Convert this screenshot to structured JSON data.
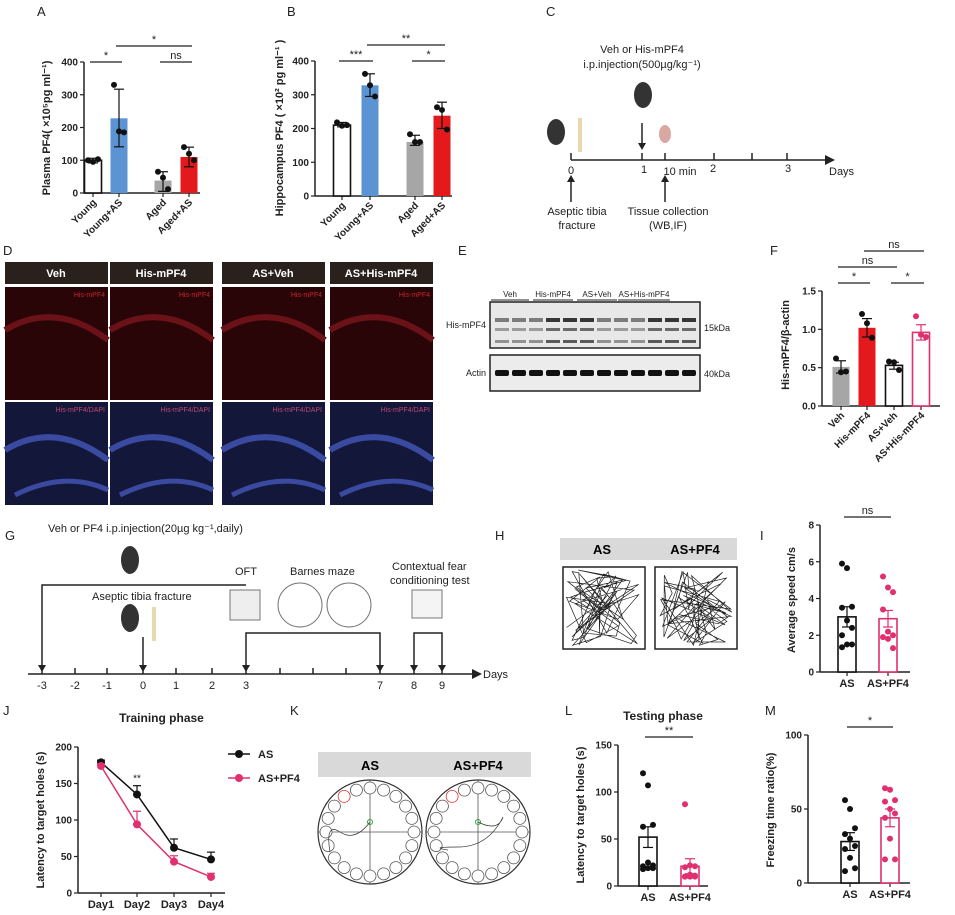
{
  "panel_letters": [
    "A",
    "B",
    "C",
    "D",
    "E",
    "F",
    "G",
    "H",
    "I",
    "J",
    "K",
    "L",
    "M"
  ],
  "colors": {
    "blue": "#5b93d3",
    "red": "#e3191c",
    "grey": "#a6a6a6",
    "pink": "#e0306f",
    "black": "#111111",
    "white": "#ffffff"
  },
  "panel_c": {
    "injection_label_1": "Veh or His-mPF4",
    "injection_label_2": "i.p.injection(500µg/kg⁻¹)",
    "ticks": [
      "0",
      "1",
      "10 min",
      "2",
      "3"
    ],
    "axis_label": "Days",
    "fracture_label_1": "Aseptic tibia",
    "fracture_label_2": "fracture",
    "collection_label_1": "Tissue collection",
    "collection_label_2": "(WB,IF)"
  },
  "panel_d": {
    "columns": [
      "Veh",
      "His-mPF4",
      "AS+Veh",
      "AS+His-mPF4"
    ],
    "top_stain": "His-mPF4",
    "bottom_stain": "His-mPF4/DAPI"
  },
  "panel_e": {
    "groups": [
      "Veh",
      "His-mPF4",
      "AS+Veh",
      "AS+His-mPF4"
    ],
    "rows": [
      "His-mPF4",
      "Actin"
    ],
    "markers": [
      "15kDa",
      "40kDa"
    ]
  },
  "panel_g": {
    "injection_label": "Veh or PF4 i.p.injection(20µg kg⁻¹,daily)",
    "fracture_label": "Aseptic tibia fracture",
    "ofT_label": "OFT",
    "barnes_label": "Barnes maze",
    "fear_label_1": "Contextual fear",
    "fear_label_2": "conditioning test",
    "ticks": [
      "-3",
      "-2",
      "-1",
      "0",
      "1",
      "2",
      "3",
      "7",
      "8",
      "9"
    ],
    "axis_label": "Days"
  },
  "panel_h": {
    "groups": [
      "AS",
      "AS+PF4"
    ]
  },
  "panel_k": {
    "groups": [
      "AS",
      "AS+PF4"
    ]
  },
  "chart_data": [
    {
      "id": "A",
      "type": "bar",
      "ylabel": "Plasma PF4( ×10⁵pg ml⁻¹)",
      "ylim": [
        0,
        400
      ],
      "yticks": [
        "0",
        "100",
        "200",
        "300",
        "400"
      ],
      "categories": [
        "Young",
        "Young+AS",
        "Aged",
        "Aged+AS"
      ],
      "values": [
        100,
        228,
        38,
        110
      ],
      "err_low": [
        92,
        141,
        5,
        80
      ],
      "err_high": [
        106,
        317,
        65,
        140
      ],
      "points": [
        [
          100,
          95,
          103
        ],
        [
          330,
          188,
          185
        ],
        [
          65,
          47,
          12
        ],
        [
          140,
          120,
          100
        ]
      ],
      "colors": [
        "#ffffff",
        "#5b93d3",
        "#a6a6a6",
        "#e3191c"
      ],
      "brackets": [
        {
          "from": 0,
          "to": 1,
          "label": "*",
          "level": 0
        },
        {
          "from": 2,
          "to": 3,
          "label": "ns",
          "level": 0
        },
        {
          "from": 1,
          "to": 3,
          "label": "*",
          "level": 1
        }
      ]
    },
    {
      "id": "B",
      "type": "bar",
      "ylabel": "Hippocampus PF4 ( ×10² pg ml⁻¹ )",
      "ylim": [
        0,
        400
      ],
      "yticks": [
        "0",
        "100",
        "200",
        "300",
        "400"
      ],
      "categories": [
        "Young",
        "Young+AS",
        "Aged",
        "Aged+AS"
      ],
      "values": [
        210,
        328,
        160,
        238
      ],
      "err_low": [
        205,
        295,
        150,
        200
      ],
      "err_high": [
        218,
        362,
        180,
        278
      ],
      "points": [
        [
          218,
          208,
          210
        ],
        [
          362,
          328,
          295
        ],
        [
          183,
          160,
          160
        ],
        [
          263,
          255,
          197
        ]
      ],
      "colors": [
        "#ffffff",
        "#5b93d3",
        "#a6a6a6",
        "#e3191c"
      ],
      "brackets": [
        {
          "from": 0,
          "to": 1,
          "label": "***",
          "level": 0
        },
        {
          "from": 2,
          "to": 3,
          "label": "*",
          "level": 0
        },
        {
          "from": 1,
          "to": 3,
          "label": "**",
          "level": 1
        }
      ]
    },
    {
      "id": "F",
      "type": "bar",
      "ylabel": "His-mPF4/β-actin",
      "ylim": [
        0,
        1.5
      ],
      "yticks": [
        "0.0",
        "0.5",
        "1.0",
        "1.5"
      ],
      "categories": [
        "Veh",
        "His-mPF4",
        "AS+Veh",
        "AS+His-mPF4"
      ],
      "values": [
        0.51,
        1.02,
        0.53,
        0.96
      ],
      "err_low": [
        0.43,
        0.9,
        0.48,
        0.86
      ],
      "err_high": [
        0.59,
        1.14,
        0.57,
        1.06
      ],
      "points": [
        [
          0.62,
          0.44,
          0.45
        ],
        [
          1.2,
          1.08,
          0.89
        ],
        [
          0.58,
          0.57,
          0.47
        ],
        [
          1.17,
          0.93,
          0.9
        ]
      ],
      "colors": [
        "#a6a6a6",
        "#e3191c",
        "#ffffff",
        "#ffffff"
      ],
      "edge": [
        "#a6a6a6",
        "#e3191c",
        "#111111",
        "#e0306f"
      ],
      "brackets": [
        {
          "from": 0,
          "to": 1,
          "label": "*",
          "level": 0
        },
        {
          "from": 2,
          "to": 3,
          "label": "*",
          "level": 0
        },
        {
          "from": 0,
          "to": 2,
          "label": "ns",
          "level": 1
        },
        {
          "from": 1,
          "to": 3,
          "label": "ns",
          "level": 2
        }
      ]
    },
    {
      "id": "I",
      "type": "bar",
      "ylabel": "Average speed cm/s",
      "ylim": [
        0,
        8
      ],
      "yticks": [
        "0",
        "2",
        "4",
        "6",
        "8"
      ],
      "categories": [
        "AS",
        "AS+PF4"
      ],
      "values": [
        3.0,
        2.9
      ],
      "err_low": [
        2.45,
        2.45
      ],
      "err_high": [
        3.55,
        3.35
      ],
      "points": [
        [
          5.9,
          5.65,
          3.55,
          3.5,
          2.8,
          2.4,
          2.0,
          1.5,
          1.5,
          1.35
        ],
        [
          5.2,
          4.6,
          4.35,
          3.4,
          2.2,
          2.0,
          1.9,
          1.8,
          1.3
        ]
      ],
      "colors": [
        "#ffffff",
        "#ffffff"
      ],
      "edge": [
        "#111111",
        "#e0306f"
      ],
      "brackets": [
        {
          "from": 0,
          "to": 1,
          "label": "ns",
          "level": 0
        }
      ]
    },
    {
      "id": "J",
      "type": "line",
      "title": "Training phase",
      "ylabel": "Latency to target holes (s)",
      "ylim": [
        0,
        200
      ],
      "yticks": [
        "0",
        "50",
        "100",
        "150",
        "200"
      ],
      "categories": [
        "Day1",
        "Day2",
        "Day3",
        "Day4"
      ],
      "series": [
        {
          "name": "AS",
          "values": [
            179,
            135,
            62,
            46
          ],
          "err": [
            3,
            12,
            12,
            10
          ],
          "color": "#111111"
        },
        {
          "name": "AS+PF4",
          "values": [
            174,
            94,
            43,
            22
          ],
          "err": [
            3,
            18,
            8,
            5
          ],
          "color": "#e0306f"
        }
      ],
      "annotations": [
        {
          "category": "Day2",
          "label": "**"
        }
      ],
      "legend": "top-right"
    },
    {
      "id": "L",
      "type": "bar",
      "title": "Testing phase",
      "ylabel": "Latency to target holes (s)",
      "ylim": [
        0,
        150
      ],
      "yticks": [
        "0",
        "50",
        "100",
        "150"
      ],
      "categories": [
        "AS",
        "AS+PF4"
      ],
      "values": [
        52,
        21
      ],
      "err_low": [
        41,
        13
      ],
      "err_high": [
        63,
        29
      ],
      "points": [
        [
          120,
          107,
          65,
          63,
          25,
          22,
          21,
          19,
          19,
          18
        ],
        [
          87,
          22,
          21,
          20,
          12,
          11,
          10,
          10,
          10,
          10
        ]
      ],
      "colors": [
        "#ffffff",
        "#ffffff"
      ],
      "edge": [
        "#111111",
        "#e0306f"
      ],
      "brackets": [
        {
          "from": 0,
          "to": 1,
          "label": "**",
          "level": 0
        }
      ]
    },
    {
      "id": "M",
      "type": "bar",
      "ylabel": "Freezing time ratio(%)",
      "ylim": [
        0,
        100
      ],
      "yticks": [
        "0",
        "50",
        "100"
      ],
      "categories": [
        "AS",
        "AS+PF4"
      ],
      "values": [
        28,
        44
      ],
      "err_low": [
        22,
        38
      ],
      "err_high": [
        34,
        50
      ],
      "points": [
        [
          56,
          50,
          37,
          33,
          30,
          25,
          23,
          17,
          10,
          8
        ],
        [
          64,
          63,
          56,
          55,
          50,
          47,
          44,
          30,
          16,
          16
        ]
      ],
      "colors": [
        "#ffffff",
        "#ffffff"
      ],
      "edge": [
        "#111111",
        "#e0306f"
      ],
      "brackets": [
        {
          "from": 0,
          "to": 1,
          "label": "*",
          "level": 0
        }
      ]
    }
  ]
}
